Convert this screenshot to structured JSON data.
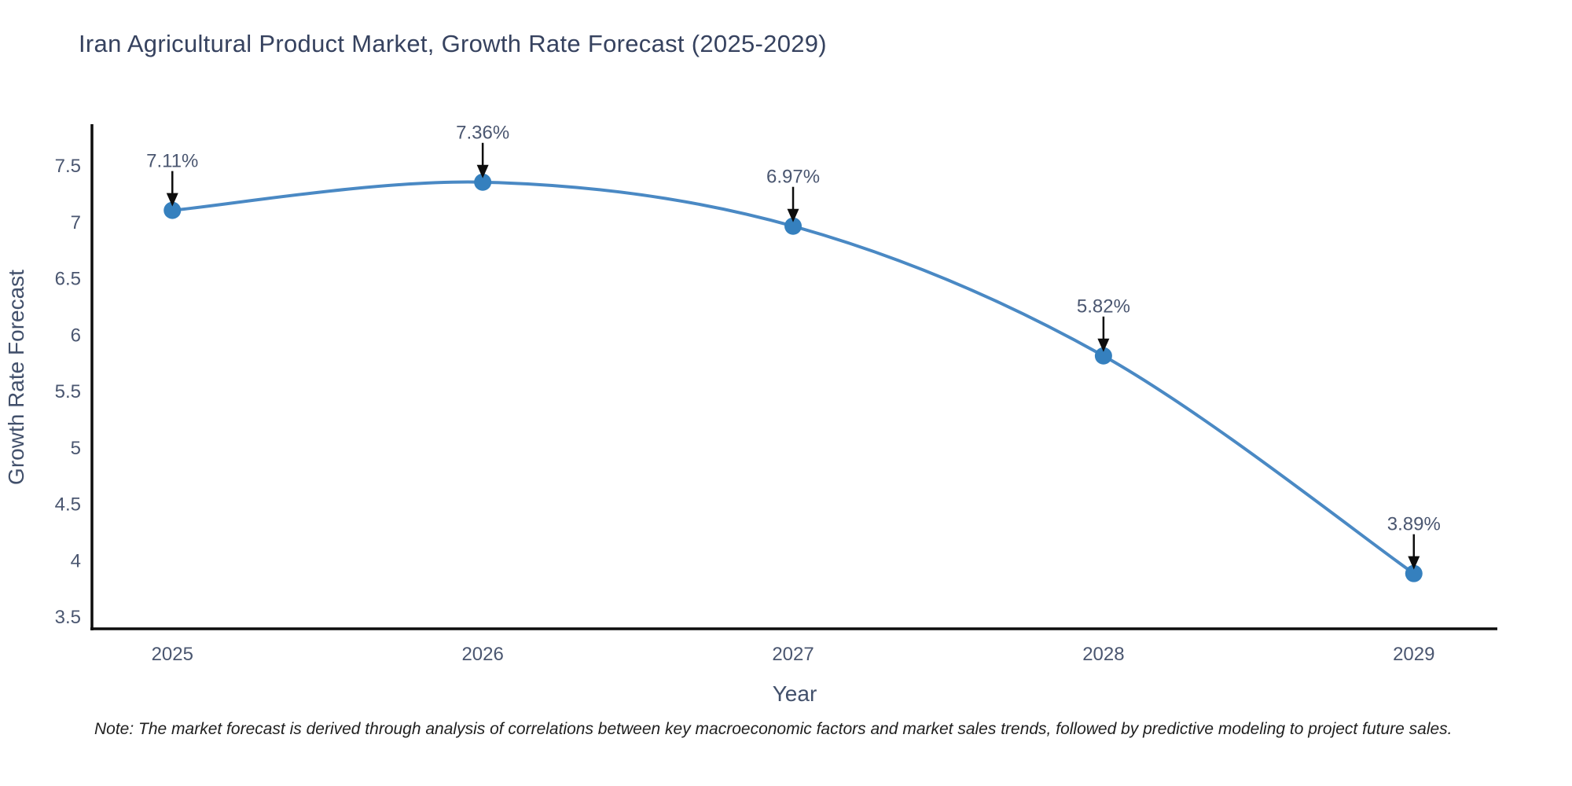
{
  "chart_data": {
    "type": "line",
    "title": "Iran Agricultural Product Market, Growth Rate Forecast (2025-2029)",
    "xlabel": "Year",
    "ylabel": "Growth Rate Forecast",
    "x": [
      2025,
      2026,
      2027,
      2028,
      2029
    ],
    "series": [
      {
        "name": "Growth Rate Forecast",
        "values": [
          7.11,
          7.36,
          6.97,
          5.82,
          3.89
        ]
      }
    ],
    "point_labels": [
      "7.11%",
      "7.36%",
      "6.97%",
      "5.82%",
      "3.89%"
    ],
    "xtick_labels": [
      "2025",
      "2026",
      "2027",
      "2028",
      "2029"
    ],
    "ytick_values": [
      3.5,
      4,
      4.5,
      5,
      5.5,
      6,
      6.5,
      7,
      7.5
    ],
    "ytick_labels": [
      "3.5",
      "4",
      "4.5",
      "5",
      "5.5",
      "6",
      "6.5",
      "7",
      "7.5"
    ],
    "xlim": [
      2024.741,
      2029.269
    ],
    "ylim": [
      3.4,
      7.86
    ],
    "grid": false,
    "legend_position": "none",
    "line_shape": "spline",
    "colors": {
      "line": "#4A89C4",
      "marker": "#3580BE",
      "arrow": "#0d0d0d",
      "axis": "#0d0d0d",
      "title_text": "#36425f",
      "tick_text": "#4a5670",
      "axis_title_text": "#42506b",
      "note_text": "#1f1f1f"
    }
  },
  "footnote": "Note: The market forecast is derived through analysis of correlations between key macroeconomic factors and market sales trends, followed by predictive modeling to project future sales."
}
